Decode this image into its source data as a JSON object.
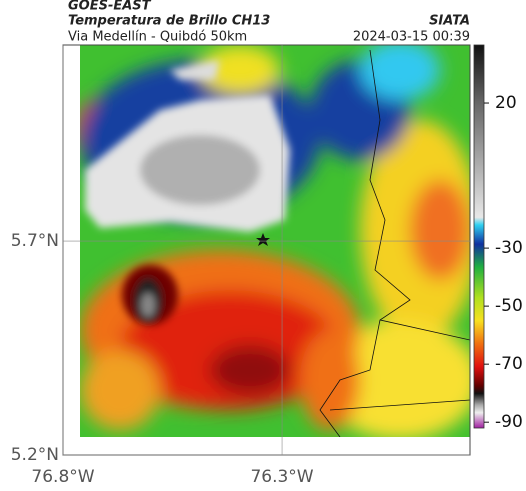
{
  "header": {
    "satellite": "GOES-EAST",
    "product": "Temperatura de Brillo CH13",
    "region": "Via Medellín - Quibdó 50km",
    "source": "SIATA",
    "datetime": "2024-03-15 00:39"
  },
  "map": {
    "ylim": [
      5.2,
      6.158
    ],
    "xlim": [
      -76.8,
      -75.871
    ],
    "yticks": [
      {
        "value": 5.7,
        "label": "5.7°N"
      },
      {
        "value": 5.2,
        "label": "5.2°N"
      }
    ],
    "xticks": [
      {
        "value": -76.8,
        "label": "76.8°W"
      },
      {
        "value": -76.3,
        "label": "76.3°W"
      }
    ]
  },
  "colorbar": {
    "lim": [
      40,
      -92
    ],
    "ticks": [
      20,
      -30,
      -50,
      -70,
      -90
    ]
  }
}
